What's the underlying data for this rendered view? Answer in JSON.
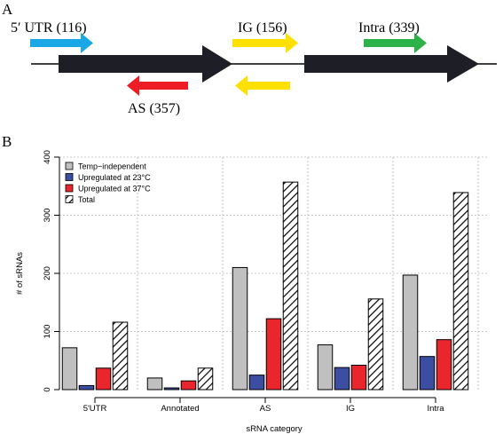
{
  "panel_a": {
    "label": "A",
    "annotations": [
      {
        "id": "utr",
        "text": "5′ UTR (116)",
        "color": "#1aa7e6",
        "direction": "right"
      },
      {
        "id": "ig",
        "text": "IG (156)",
        "color": "#ffe000",
        "direction": "right"
      },
      {
        "id": "intra",
        "text": "Intra (339)",
        "color": "#2bb34a",
        "direction": "right"
      },
      {
        "id": "as",
        "text": "AS (357)",
        "color": "#ee1c24",
        "direction": "left"
      },
      {
        "id": "ig-reverse",
        "text": "",
        "color": "#ffe000",
        "direction": "left"
      }
    ],
    "gene_color": "#1e1e26"
  },
  "panel_b": {
    "label": "B"
  },
  "chart_data": {
    "type": "bar",
    "categories": [
      "5'UTR",
      "Annotated",
      "AS",
      "IG",
      "Intra"
    ],
    "series": [
      {
        "name": "Temp−independent",
        "values": [
          72,
          20,
          210,
          77,
          197
        ],
        "color": "#c0c0c0",
        "hatch": false
      },
      {
        "name": "Upregulated at 23°C",
        "values": [
          7,
          3,
          25,
          38,
          57
        ],
        "color": "#3b4ea1",
        "hatch": false
      },
      {
        "name": "Upregulated at 37°C",
        "values": [
          37,
          15,
          122,
          42,
          86
        ],
        "color": "#e8262c",
        "hatch": false
      },
      {
        "name": "Total",
        "values": [
          116,
          37,
          357,
          156,
          339
        ],
        "color": "#ffffff",
        "hatch": true
      }
    ],
    "xlabel": "sRNA category",
    "ylabel": "# of sRNAs",
    "ylim": [
      0,
      400
    ],
    "yticks": [
      0,
      100,
      200,
      300,
      400
    ],
    "grid": true,
    "legend_position": "top-left"
  }
}
